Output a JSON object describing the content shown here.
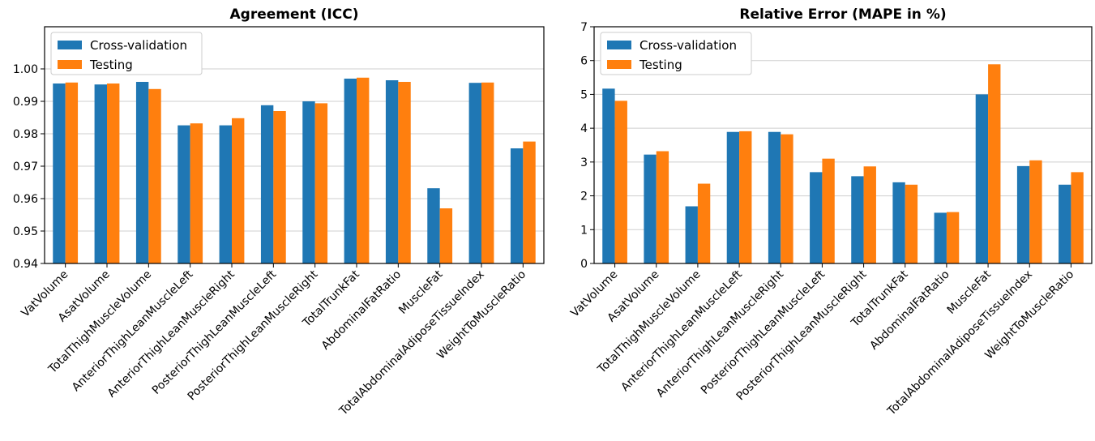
{
  "chart_data": [
    {
      "type": "bar",
      "title": "Agreement (ICC)",
      "xlabel": "",
      "ylabel": "",
      "ylim": [
        0.94,
        1.013
      ],
      "yticks": [
        "0.94",
        "0.95",
        "0.96",
        "0.97",
        "0.98",
        "0.99",
        "1.00"
      ],
      "grid": "horizontal",
      "legend_position": "top-left",
      "categories": [
        "VatVolume",
        "AsatVolume",
        "TotalThighMuscleVolume",
        "AnteriorThighLeanMuscleLeft",
        "AnteriorThighLeanMuscleRight",
        "PosteriorThighLeanMuscleLeft",
        "PosteriorThighLeanMuscleRight",
        "TotalTrunkFat",
        "AbdominalFatRatio",
        "MuscleFat",
        "TotalAbdominalAdiposeTissueIndex",
        "WeightToMuscleRatio"
      ],
      "series": [
        {
          "name": "Cross-validation",
          "color": "#1f77b4",
          "values": [
            0.9955,
            0.9952,
            0.996,
            0.9826,
            0.9826,
            0.9888,
            0.99,
            0.997,
            0.9965,
            0.9632,
            0.9957,
            0.9755
          ]
        },
        {
          "name": "Testing",
          "color": "#ff7f0e",
          "values": [
            0.9958,
            0.9955,
            0.9938,
            0.9832,
            0.9848,
            0.987,
            0.9894,
            0.9973,
            0.996,
            0.957,
            0.9958,
            0.9776
          ]
        }
      ]
    },
    {
      "type": "bar",
      "title": "Relative Error (MAPE in %)",
      "xlabel": "",
      "ylabel": "",
      "ylim": [
        0,
        7
      ],
      "yticks": [
        "0",
        "1",
        "2",
        "3",
        "4",
        "5",
        "6",
        "7"
      ],
      "grid": "horizontal",
      "legend_position": "top-left",
      "categories": [
        "VatVolume",
        "AsatVolume",
        "TotalThighMuscleVolume",
        "AnteriorThighLeanMuscleLeft",
        "AnteriorThighLeanMuscleRight",
        "PosteriorThighLeanMuscleLeft",
        "PosteriorThighLeanMuscleRight",
        "TotalTrunkFat",
        "AbdominalFatRatio",
        "MuscleFat",
        "TotalAbdominalAdiposeTissueIndex",
        "WeightToMuscleRatio"
      ],
      "series": [
        {
          "name": "Cross-validation",
          "color": "#1f77b4",
          "values": [
            5.17,
            3.22,
            1.69,
            3.89,
            3.89,
            2.7,
            2.58,
            2.4,
            1.5,
            5.0,
            2.88,
            2.33
          ]
        },
        {
          "name": "Testing",
          "color": "#ff7f0e",
          "values": [
            4.81,
            3.32,
            2.36,
            3.91,
            3.82,
            3.1,
            2.87,
            2.33,
            1.52,
            5.89,
            3.05,
            2.7
          ]
        }
      ]
    }
  ]
}
